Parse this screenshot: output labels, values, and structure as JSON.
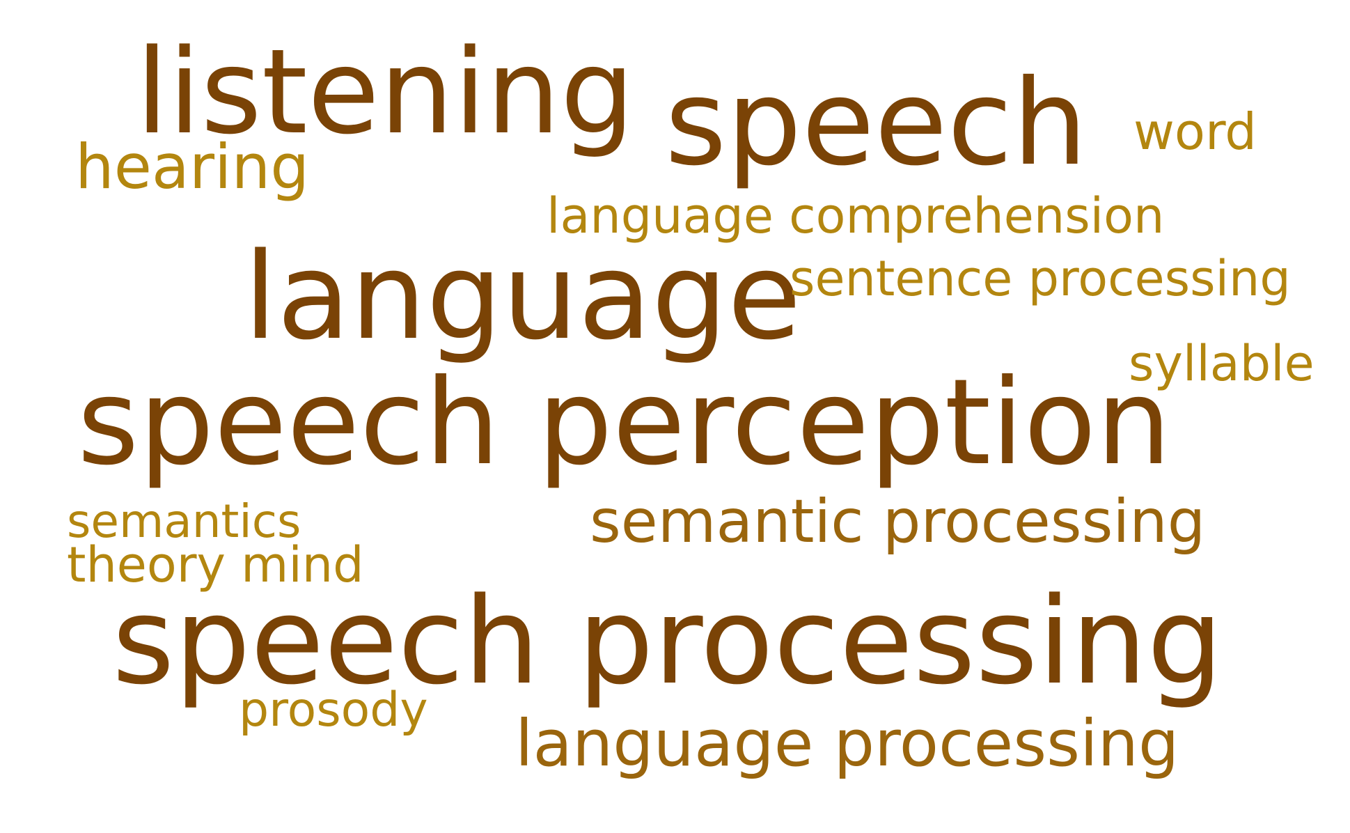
{
  "word_cloud": {
    "words": [
      {
        "text": "listening",
        "color": "#7a4306"
      },
      {
        "text": "speech",
        "color": "#7a4306"
      },
      {
        "text": "word",
        "color": "#b3860f"
      },
      {
        "text": "hearing",
        "color": "#b3860f"
      },
      {
        "text": "language comprehension",
        "color": "#b3860f"
      },
      {
        "text": "language",
        "color": "#7a4306"
      },
      {
        "text": "sentence processing",
        "color": "#b3860f"
      },
      {
        "text": "syllable",
        "color": "#b3860f"
      },
      {
        "text": "speech perception",
        "color": "#7a4306"
      },
      {
        "text": "semantics",
        "color": "#b3860f"
      },
      {
        "text": "semantic processing",
        "color": "#9a650d"
      },
      {
        "text": "theory mind",
        "color": "#b3860f"
      },
      {
        "text": "speech processing",
        "color": "#7a4306"
      },
      {
        "text": "prosody",
        "color": "#b3860f"
      },
      {
        "text": "language processing",
        "color": "#9a650d"
      }
    ]
  }
}
